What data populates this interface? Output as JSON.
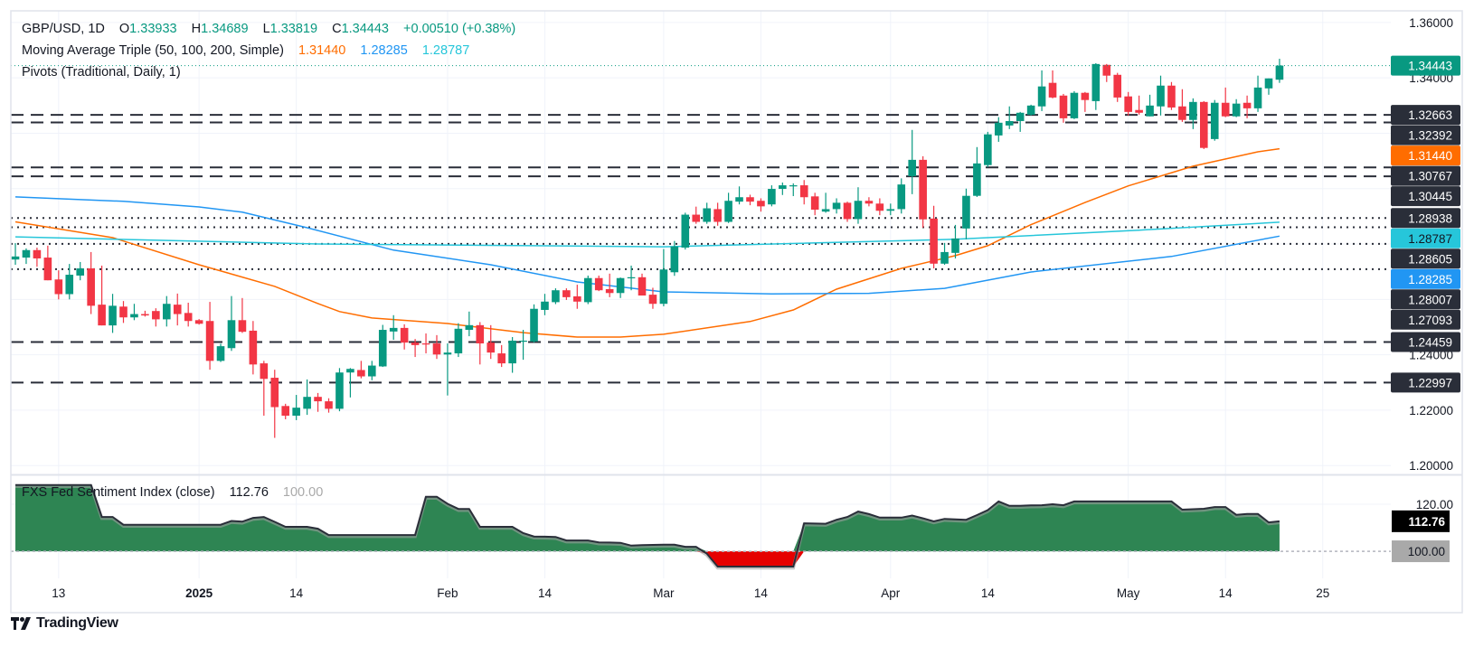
{
  "header": {
    "symbol": "GBP/USD, 1D",
    "o_label": "O",
    "o": "1.33933",
    "h_label": "H",
    "h": "1.34689",
    "l_label": "L",
    "l": "1.33819",
    "c_label": "C",
    "c": "1.34443",
    "change": "+0.00510 (+0.38%)"
  },
  "ma_legend": {
    "title": "Moving Average Triple (50, 100, 200, Simple)",
    "v50": "1.31440",
    "v100": "1.28285",
    "v200": "1.28787"
  },
  "pivots_legend": {
    "title": "Pivots (Traditional, Daily, 1)"
  },
  "indicator_legend": {
    "title": "FXS Fed Sentiment Index (close)",
    "value": "112.76",
    "baseline": "100.00"
  },
  "branding": {
    "name": "TradingView",
    "icon": "tradingview-logo-icon"
  },
  "colors": {
    "bull": "#089981",
    "bear": "#f23645",
    "ma50": "#ff6d00",
    "ma100": "#2196f3",
    "ma200": "#26c6da",
    "pivot": "#2a2e39",
    "index_fill_above": "#2e8553",
    "index_fill_below": "#e50000",
    "index_tag": "#000000",
    "baseline_tag": "#a9a9a9"
  },
  "chart_data": [
    {
      "type": "candlestick",
      "symbol": "GBP/USD",
      "interval": "1D",
      "ylim": [
        1.1968,
        1.3642
      ],
      "xlim": [
        -0.42,
        127.3
      ],
      "grid": true,
      "grid_step": 0.02,
      "yticks": [
        "1.36000",
        "1.34000",
        "1.24000",
        "1.22000",
        "1.20000"
      ],
      "xticks": [
        {
          "label": "13",
          "bar": 4
        },
        {
          "label": "2025",
          "bar": 17,
          "bold": true
        },
        {
          "label": "14",
          "bar": 26
        },
        {
          "label": "Feb",
          "bar": 40
        },
        {
          "label": "14",
          "bar": 49
        },
        {
          "label": "Mar",
          "bar": 60
        },
        {
          "label": "14",
          "bar": 69
        },
        {
          "label": "Apr",
          "bar": 81
        },
        {
          "label": "14",
          "bar": 90
        },
        {
          "label": "May",
          "bar": 103
        },
        {
          "label": "14",
          "bar": 112
        },
        {
          "label": "25",
          "bar": 121
        }
      ],
      "last_price": "1.34443",
      "candles_ohlc": [
        [
          1.2744,
          1.2803,
          1.2725,
          1.2755
        ],
        [
          1.2751,
          1.2784,
          1.2728,
          1.2778
        ],
        [
          1.2778,
          1.2787,
          1.2718,
          1.2748
        ],
        [
          1.2751,
          1.2794,
          1.2669,
          1.2669
        ],
        [
          1.2672,
          1.2705,
          1.26,
          1.2619
        ],
        [
          1.2619,
          1.2728,
          1.26,
          1.2689
        ],
        [
          1.2686,
          1.2735,
          1.2669,
          1.2712
        ],
        [
          1.2712,
          1.2771,
          1.2547,
          1.2577
        ],
        [
          1.2581,
          1.2722,
          1.2506,
          1.2506
        ],
        [
          1.2506,
          1.262,
          1.2479,
          1.2577
        ],
        [
          1.2574,
          1.2594,
          1.2515,
          1.2535
        ],
        [
          1.2535,
          1.2584,
          1.2525,
          1.2547
        ],
        [
          1.2547,
          1.2559,
          1.2538,
          1.2542
        ],
        [
          1.2558,
          1.2568,
          1.2502,
          1.2528
        ],
        [
          1.2528,
          1.2612,
          1.2502,
          1.2584
        ],
        [
          1.2581,
          1.2621,
          1.2506,
          1.2547
        ],
        [
          1.2551,
          1.2588,
          1.2502,
          1.2522
        ],
        [
          1.2525,
          1.2529,
          1.2509,
          1.2512
        ],
        [
          1.2522,
          1.2591,
          1.2346,
          1.2378
        ],
        [
          1.2378,
          1.244,
          1.2374,
          1.2431
        ],
        [
          1.2424,
          1.2612,
          1.2414,
          1.2525
        ],
        [
          1.2525,
          1.2605,
          1.2479,
          1.2483
        ],
        [
          1.2487,
          1.2522,
          1.2329,
          1.2365
        ],
        [
          1.2369,
          1.2378,
          1.218,
          1.2313
        ],
        [
          1.2317,
          1.2346,
          1.21,
          1.2211
        ],
        [
          1.2215,
          1.2223,
          1.2167,
          1.218
        ],
        [
          1.218,
          1.2255,
          1.2164,
          1.2209
        ],
        [
          1.2205,
          1.2311,
          1.2183,
          1.2248
        ],
        [
          1.2248,
          1.2262,
          1.2194,
          1.2232
        ],
        [
          1.2232,
          1.2243,
          1.2191,
          1.2205
        ],
        [
          1.2205,
          1.2352,
          1.2196,
          1.2336
        ],
        [
          1.2336,
          1.2352,
          1.2246,
          1.2349
        ],
        [
          1.2345,
          1.2378,
          1.2315,
          1.2322
        ],
        [
          1.2322,
          1.2378,
          1.2308,
          1.2361
        ],
        [
          1.2358,
          1.2508,
          1.2356,
          1.249
        ],
        [
          1.2484,
          1.2543,
          1.2454,
          1.2497
        ],
        [
          1.2497,
          1.251,
          1.2419,
          1.2444
        ],
        [
          1.2444,
          1.2457,
          1.2392,
          1.2435
        ],
        [
          1.2441,
          1.2477,
          1.2405,
          1.2437
        ],
        [
          1.2441,
          1.2471,
          1.2385,
          1.2401
        ],
        [
          1.2401,
          1.2441,
          1.2253,
          1.2408
        ],
        [
          1.2405,
          1.2514,
          1.2392,
          1.2494
        ],
        [
          1.249,
          1.2556,
          1.2467,
          1.2507
        ],
        [
          1.2507,
          1.2518,
          1.2365,
          1.2441
        ],
        [
          1.2444,
          1.2507,
          1.2385,
          1.2408
        ],
        [
          1.2405,
          1.2435,
          1.2356,
          1.2369
        ],
        [
          1.2369,
          1.2464,
          1.2335,
          1.2451
        ],
        [
          1.2448,
          1.249,
          1.2382,
          1.2451
        ],
        [
          1.2448,
          1.2582,
          1.2444,
          1.2566
        ],
        [
          1.2562,
          1.262,
          1.2543,
          1.2592
        ],
        [
          1.259,
          1.264,
          1.2583,
          1.2633
        ],
        [
          1.2633,
          1.264,
          1.2598,
          1.2608
        ],
        [
          1.2611,
          1.2653,
          1.2566,
          1.2592
        ],
        [
          1.259,
          1.2686,
          1.2583,
          1.2677
        ],
        [
          1.2677,
          1.2686,
          1.263,
          1.2633
        ],
        [
          1.2637,
          1.2693,
          1.2608,
          1.2623
        ],
        [
          1.2623,
          1.2679,
          1.2605,
          1.2677
        ],
        [
          1.2677,
          1.2722,
          1.2633,
          1.268
        ],
        [
          1.268,
          1.2693,
          1.2614,
          1.2614
        ],
        [
          1.2617,
          1.2642,
          1.2566,
          1.2584
        ],
        [
          1.2584,
          1.2782,
          1.2575,
          1.2708
        ],
        [
          1.2698,
          1.2811,
          1.2685,
          1.2791
        ],
        [
          1.2787,
          1.2913,
          1.278,
          1.2906
        ],
        [
          1.2906,
          1.2935,
          1.2873,
          1.288
        ],
        [
          1.288,
          1.2949,
          1.2873,
          1.2929
        ],
        [
          1.2926,
          1.2949,
          1.2866,
          1.288
        ],
        [
          1.288,
          1.2985,
          1.2876,
          1.2956
        ],
        [
          1.2953,
          1.3008,
          1.2943,
          1.2969
        ],
        [
          1.2969,
          1.2978,
          1.294,
          1.2953
        ],
        [
          1.2956,
          1.2965,
          1.2917,
          1.2936
        ],
        [
          1.2943,
          1.3012,
          1.2936,
          1.2999
        ],
        [
          1.2999,
          1.3022,
          1.2977,
          1.3012
        ],
        [
          1.3009,
          1.3019,
          1.2973,
          1.3012
        ],
        [
          1.3012,
          1.3031,
          1.2943,
          1.2969
        ],
        [
          1.2972,
          1.2985,
          1.2904,
          1.2924
        ],
        [
          1.2917,
          1.2985,
          1.2913,
          1.2926
        ],
        [
          1.2926,
          1.2965,
          1.291,
          1.2949
        ],
        [
          1.2949,
          1.2953,
          1.288,
          1.289
        ],
        [
          1.289,
          1.3005,
          1.2873,
          1.2956
        ],
        [
          1.2956,
          1.2969,
          1.2936,
          1.2946
        ],
        [
          1.2946,
          1.2965,
          1.2904,
          1.292
        ],
        [
          1.292,
          1.2946,
          1.2904,
          1.2926
        ],
        [
          1.2926,
          1.3037,
          1.291,
          1.3015
        ],
        [
          1.3045,
          1.3212,
          1.298,
          1.3104
        ],
        [
          1.3104,
          1.3117,
          1.2859,
          1.2889
        ],
        [
          1.2892,
          1.2938,
          1.2712,
          1.2729
        ],
        [
          1.2729,
          1.2804,
          1.2725,
          1.2771
        ],
        [
          1.2768,
          1.2869,
          1.2748,
          1.282
        ],
        [
          1.2856,
          1.3,
          1.2817,
          1.2974
        ],
        [
          1.2974,
          1.315,
          1.297,
          1.3091
        ],
        [
          1.3085,
          1.3205,
          1.3078,
          1.3196
        ],
        [
          1.3192,
          1.3258,
          1.3169,
          1.3238
        ],
        [
          1.3228,
          1.3297,
          1.3215,
          1.3244
        ],
        [
          1.3244,
          1.3277,
          1.3205,
          1.3274
        ],
        [
          1.3267,
          1.3303,
          1.3264,
          1.33
        ],
        [
          1.3297,
          1.3427,
          1.328,
          1.3369
        ],
        [
          1.3382,
          1.3427,
          1.3326,
          1.3329
        ],
        [
          1.3336,
          1.3342,
          1.3238,
          1.3254
        ],
        [
          1.3254,
          1.3352,
          1.3251,
          1.3346
        ],
        [
          1.3346,
          1.3349,
          1.3277,
          1.332
        ],
        [
          1.3316,
          1.3453,
          1.3284,
          1.345
        ],
        [
          1.3447,
          1.345,
          1.3385,
          1.3408
        ],
        [
          1.3411,
          1.3418,
          1.3313,
          1.3329
        ],
        [
          1.3333,
          1.3349,
          1.3264,
          1.3277
        ],
        [
          1.3284,
          1.3336,
          1.3267,
          1.3274
        ],
        [
          1.3261,
          1.3339,
          1.3261,
          1.33
        ],
        [
          1.3297,
          1.3408,
          1.3264,
          1.3372
        ],
        [
          1.3372,
          1.3385,
          1.3284,
          1.3293
        ],
        [
          1.3297,
          1.3359,
          1.3241,
          1.3248
        ],
        [
          1.3248,
          1.3326,
          1.3215,
          1.3313
        ],
        [
          1.3313,
          1.3316,
          1.3143,
          1.3147
        ],
        [
          1.3179,
          1.332,
          1.3173,
          1.331
        ],
        [
          1.331,
          1.3365,
          1.3258,
          1.3261
        ],
        [
          1.3261,
          1.3323,
          1.3258,
          1.3307
        ],
        [
          1.331,
          1.3336,
          1.3254,
          1.329
        ],
        [
          1.329,
          1.3408,
          1.3277,
          1.3365
        ],
        [
          1.3362,
          1.3398,
          1.3339,
          1.3398
        ],
        [
          1.33933,
          1.34689,
          1.33819,
          1.34443
        ]
      ],
      "moving_averages": [
        {
          "name": "50",
          "value": "1.31440",
          "color_key": "ma50",
          "points": [
            [
              0,
              1.288
            ],
            [
              9,
              1.2823
            ],
            [
              17,
              1.2725
            ],
            [
              24,
              1.2647
            ],
            [
              28,
              1.2585
            ],
            [
              30,
              1.2556
            ],
            [
              33,
              1.2533
            ],
            [
              40,
              1.2513
            ],
            [
              47,
              1.248
            ],
            [
              52,
              1.2464
            ],
            [
              56,
              1.2464
            ],
            [
              60,
              1.2474
            ],
            [
              68,
              1.252
            ],
            [
              72,
              1.2562
            ],
            [
              76,
              1.2637
            ],
            [
              82,
              1.2712
            ],
            [
              87,
              1.2758
            ],
            [
              90,
              1.2794
            ],
            [
              94,
              1.287
            ],
            [
              99,
              1.295
            ],
            [
              103,
              1.301
            ],
            [
              109,
              1.3081
            ],
            [
              115,
              1.3133
            ],
            [
              117,
              1.3144
            ]
          ]
        },
        {
          "name": "100",
          "value": "1.28285",
          "color_key": "ma100",
          "points": [
            [
              0,
              1.297
            ],
            [
              10,
              1.2954
            ],
            [
              17,
              1.2934
            ],
            [
              21,
              1.2915
            ],
            [
              27,
              1.2859
            ],
            [
              35,
              1.2778
            ],
            [
              44,
              1.2725
            ],
            [
              52,
              1.2663
            ],
            [
              60,
              1.2627
            ],
            [
              70,
              1.262
            ],
            [
              79,
              1.2622
            ],
            [
              86,
              1.264
            ],
            [
              94,
              1.2699
            ],
            [
              107,
              1.2755
            ],
            [
              117,
              1.28285
            ]
          ]
        },
        {
          "name": "200",
          "value": "1.28787",
          "color_key": "ma200",
          "points": [
            [
              0,
              1.2826
            ],
            [
              28,
              1.28
            ],
            [
              60,
              1.279
            ],
            [
              87,
              1.2817
            ],
            [
              104,
              1.285
            ],
            [
              117,
              1.28787
            ]
          ]
        }
      ],
      "pivot_levels": [
        {
          "value": "1.32663",
          "style": "dashed"
        },
        {
          "value": "1.32392",
          "style": "dashed"
        },
        {
          "value": "1.30767",
          "style": "dashed"
        },
        {
          "value": "1.30445",
          "style": "dashed"
        },
        {
          "value": "1.28938",
          "style": "dotted"
        },
        {
          "value": "1.28605",
          "style": "dotted"
        },
        {
          "value": "1.28007",
          "style": "dotted"
        },
        {
          "value": "1.27093",
          "style": "dotted"
        },
        {
          "value": "1.24459",
          "style": "dashed"
        },
        {
          "value": "1.22997",
          "style": "dashed"
        }
      ]
    },
    {
      "type": "area",
      "name": "FXS Fed Sentiment Index (close)",
      "ylim": [
        88.5,
        132.3
      ],
      "baseline": 100,
      "yticks": [
        "120.00"
      ],
      "last_value": "112.76",
      "baseline_label": "100.00",
      "values": [
        128.2,
        128.2,
        128.2,
        128.2,
        128.2,
        128.2,
        128.2,
        128.2,
        114.6,
        114.6,
        111.3,
        111.3,
        111.3,
        111.3,
        111.3,
        111.3,
        111.3,
        111.3,
        111.3,
        111.3,
        112.9,
        112.6,
        114.2,
        114.6,
        112.5,
        110.4,
        110.4,
        110.4,
        109.6,
        106.9,
        106.9,
        106.9,
        106.9,
        106.9,
        106.9,
        106.9,
        106.9,
        106.9,
        123.2,
        123.2,
        120.2,
        118.0,
        118.0,
        110.4,
        110.4,
        110.4,
        110.4,
        107.7,
        106.3,
        106.2,
        106.1,
        104.6,
        104.6,
        104.6,
        103.8,
        103.7,
        103.6,
        102.4,
        102.6,
        102.7,
        102.8,
        102.8,
        101.9,
        101.9,
        99.0,
        93.5,
        93.5,
        93.5,
        93.5,
        93.5,
        93.5,
        93.5,
        93.5,
        111.9,
        111.8,
        111.7,
        113.4,
        114.6,
        116.9,
        115.8,
        114.3,
        114.3,
        114.3,
        115.2,
        114.0,
        112.7,
        113.8,
        113.6,
        113.4,
        115.4,
        117.5,
        121.2,
        119.3,
        119.3,
        119.5,
        119.6,
        120.0,
        119.6,
        121.2,
        121.2,
        121.2,
        121.2,
        121.2,
        121.2,
        121.2,
        121.2,
        121.2,
        121.2,
        117.7,
        117.9,
        118.1,
        118.8,
        118.8,
        115.5,
        115.9,
        115.9,
        112.3,
        112.76
      ]
    }
  ]
}
